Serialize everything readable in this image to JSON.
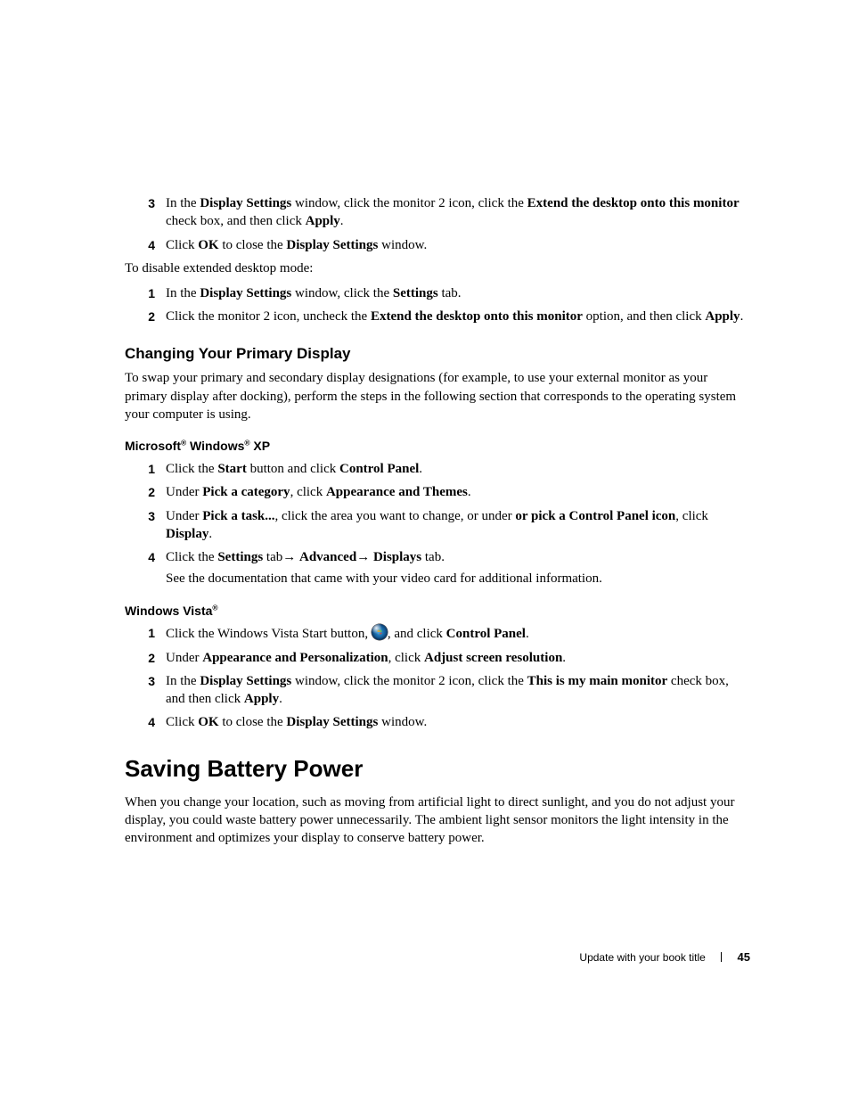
{
  "list_a": {
    "items": [
      {
        "num": "3",
        "parts": [
          "In the ",
          "Display Settings",
          " window, click the monitor 2 icon, click the ",
          "Extend the desktop onto this monitor",
          " check box, and then click ",
          "Apply",
          "."
        ]
      },
      {
        "num": "4",
        "parts": [
          "Click ",
          "OK",
          " to close the ",
          "Display Settings",
          " window."
        ]
      }
    ]
  },
  "disable_para": "To disable extended desktop mode:",
  "list_b": {
    "items": [
      {
        "num": "1",
        "parts": [
          "In the ",
          "Display Settings",
          " window, click the ",
          "Settings",
          " tab."
        ]
      },
      {
        "num": "2",
        "parts": [
          "Click the monitor 2 icon, uncheck the ",
          "Extend the desktop onto this monitor",
          " option, and then click ",
          "Apply",
          "."
        ]
      }
    ]
  },
  "h2_changing": "Changing Your Primary Display",
  "changing_para": "To swap your primary and secondary display designations (for example, to use your external monitor as your primary display after docking), perform the steps in the following section that corresponds to the operating system your computer is using.",
  "h3_xp": {
    "pre": "Microsoft",
    "mid": " Windows",
    "post": " XP"
  },
  "list_xp": {
    "items": [
      {
        "num": "1",
        "parts": [
          "Click the ",
          "Start",
          " button and click ",
          "Control Panel",
          "."
        ]
      },
      {
        "num": "2",
        "parts": [
          "Under ",
          "Pick a category",
          ", click ",
          "Appearance and Themes",
          "."
        ]
      },
      {
        "num": "3",
        "parts": [
          "Under ",
          "Pick a task...",
          ", click the area you want to change, or under ",
          "or pick a Control Panel icon",
          ", click ",
          "Display",
          "."
        ]
      },
      {
        "num": "4",
        "parts": [
          "Click the ",
          "Settings",
          " tab",
          "→",
          " ",
          "Advanced",
          "→",
          " ",
          "Displays",
          " tab."
        ],
        "note": "See the documentation that came with your video card for additional information."
      }
    ]
  },
  "h3_vista": {
    "pre": "Windows Vista"
  },
  "list_vista": {
    "items": [
      {
        "num": "1",
        "pre": "Click the Windows Vista Start button, ",
        "post": [
          ", and click ",
          "Control Panel",
          "."
        ]
      },
      {
        "num": "2",
        "parts": [
          "Under ",
          "Appearance and Personalization",
          ", click ",
          "Adjust screen resolution",
          "."
        ]
      },
      {
        "num": "3",
        "parts": [
          "In the ",
          "Display Settings",
          " window, click the monitor 2 icon, click the ",
          "This is my main monitor",
          " check box, and then click ",
          "Apply",
          "."
        ]
      },
      {
        "num": "4",
        "parts": [
          "Click ",
          "OK",
          " to close the ",
          "Display Settings",
          " window."
        ]
      }
    ]
  },
  "h1": "Saving Battery Power",
  "battery_para": "When you change your location, such as moving from artificial light to direct sunlight, and you do not adjust your display, you could waste battery power unnecessarily. The ambient light sensor monitors the light intensity in the environment and optimizes your display to conserve battery power.",
  "footer": {
    "title": "Update with your book title",
    "page": "45"
  }
}
